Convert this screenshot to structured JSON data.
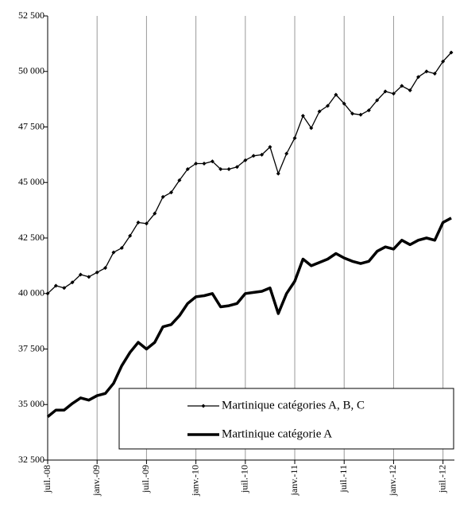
{
  "chart_data": {
    "type": "line",
    "categories": [
      "juil.-08",
      null,
      null,
      null,
      null,
      null,
      "janv.-09",
      null,
      null,
      null,
      null,
      null,
      "juil.-09",
      null,
      null,
      null,
      null,
      null,
      "janv.-10",
      null,
      null,
      null,
      null,
      null,
      "juil.-10",
      null,
      null,
      null,
      null,
      null,
      "janv.-11",
      null,
      null,
      null,
      null,
      null,
      "juil.-11",
      null,
      null,
      null,
      null,
      null,
      "janv.-12",
      null,
      null,
      null,
      null,
      null,
      "juil.-12",
      null
    ],
    "series": [
      {
        "name": "Martinique catégories A, B, C",
        "color": "#000000",
        "values": [
          40000,
          40350,
          40250,
          40500,
          40850,
          40750,
          40950,
          41150,
          41850,
          42050,
          42600,
          43200,
          43150,
          43600,
          44350,
          44550,
          45100,
          45600,
          45850,
          45850,
          45950,
          45600,
          45600,
          45700,
          46000,
          46200,
          46250,
          46600,
          45400,
          46300,
          47000,
          48000,
          47450,
          48200,
          48450,
          48950,
          48550,
          48100,
          48050,
          48250,
          48700,
          49100,
          49000,
          49350,
          49150,
          49750,
          50000,
          49900,
          50450,
          50850
        ]
      },
      {
        "name": "Martinique catégorie A",
        "color": "#000000",
        "values": [
          34450,
          34750,
          34750,
          35050,
          35300,
          35200,
          35400,
          35500,
          35950,
          36750,
          37350,
          37800,
          37500,
          37800,
          38500,
          38600,
          39000,
          39550,
          39850,
          39900,
          40000,
          39400,
          39450,
          39550,
          40000,
          40050,
          40100,
          40250,
          39100,
          40000,
          40550,
          41550,
          41250,
          41400,
          41550,
          41800,
          41600,
          41450,
          41350,
          41450,
          41900,
          42100,
          42000,
          42400,
          42200,
          42400,
          42500,
          42400,
          43200,
          43400
        ]
      }
    ],
    "ylim": [
      32500,
      52500
    ],
    "yticks": [
      {
        "value": 32500,
        "label": "32 500"
      },
      {
        "value": 35000,
        "label": "35 000"
      },
      {
        "value": 37500,
        "label": "37 500"
      },
      {
        "value": 40000,
        "label": "40 000"
      },
      {
        "value": 42500,
        "label": "42 500"
      },
      {
        "value": 45000,
        "label": "45 000"
      },
      {
        "value": 47500,
        "label": "47 500"
      },
      {
        "value": 50000,
        "label": "50 000"
      },
      {
        "value": 52500,
        "label": "52 500"
      }
    ],
    "grid": true
  }
}
